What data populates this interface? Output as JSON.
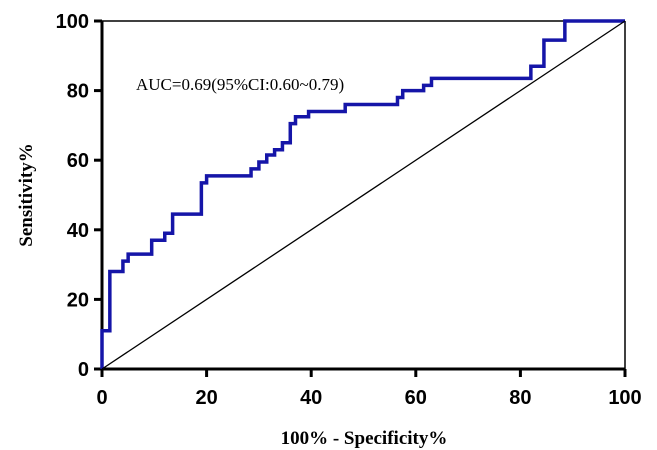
{
  "chart_data": {
    "type": "line",
    "title": "",
    "xlabel": "100% - Specificity%",
    "ylabel": "Sensitivity%",
    "xlim": [
      0,
      100
    ],
    "ylim": [
      0,
      100
    ],
    "x_ticks": [
      "0",
      "20",
      "40",
      "60",
      "80",
      "100"
    ],
    "y_ticks": [
      "0",
      "20",
      "40",
      "60",
      "80",
      "100"
    ],
    "grid": false,
    "annotation": "AUC=0.69(95%CI:0.60~0.79)",
    "series": [
      {
        "color": "#1515a8",
        "x": [
          0,
          0,
          1.5,
          1.5,
          4,
          4,
          5,
          5,
          9.5,
          9.5,
          12,
          12,
          13.5,
          13.5,
          19,
          19,
          20,
          20,
          28.5,
          28.5,
          30,
          30,
          31.5,
          31.5,
          33,
          33,
          34.5,
          34.5,
          36,
          36,
          37,
          37,
          39.5,
          39.5,
          46.5,
          46.5,
          56.5,
          56.5,
          57.5,
          57.5,
          61.5,
          61.5,
          63,
          63,
          82,
          82,
          84.5,
          84.5,
          88.5,
          88.5,
          100
        ],
        "y": [
          0,
          11,
          11,
          28,
          28,
          31,
          31,
          33,
          33,
          37,
          37,
          39,
          39,
          44.5,
          44.5,
          53.5,
          53.5,
          55.5,
          55.5,
          57.5,
          57.5,
          59.5,
          59.5,
          61.5,
          61.5,
          63,
          63,
          65,
          65,
          70.5,
          70.5,
          72.5,
          72.5,
          74,
          74,
          76,
          76,
          78,
          78,
          80,
          80,
          81.5,
          81.5,
          83.5,
          83.5,
          87,
          87,
          94.5,
          94.5,
          100,
          100
        ]
      },
      {
        "color": "#000000",
        "x": [
          0,
          100
        ],
        "y": [
          0,
          100
        ]
      }
    ]
  }
}
